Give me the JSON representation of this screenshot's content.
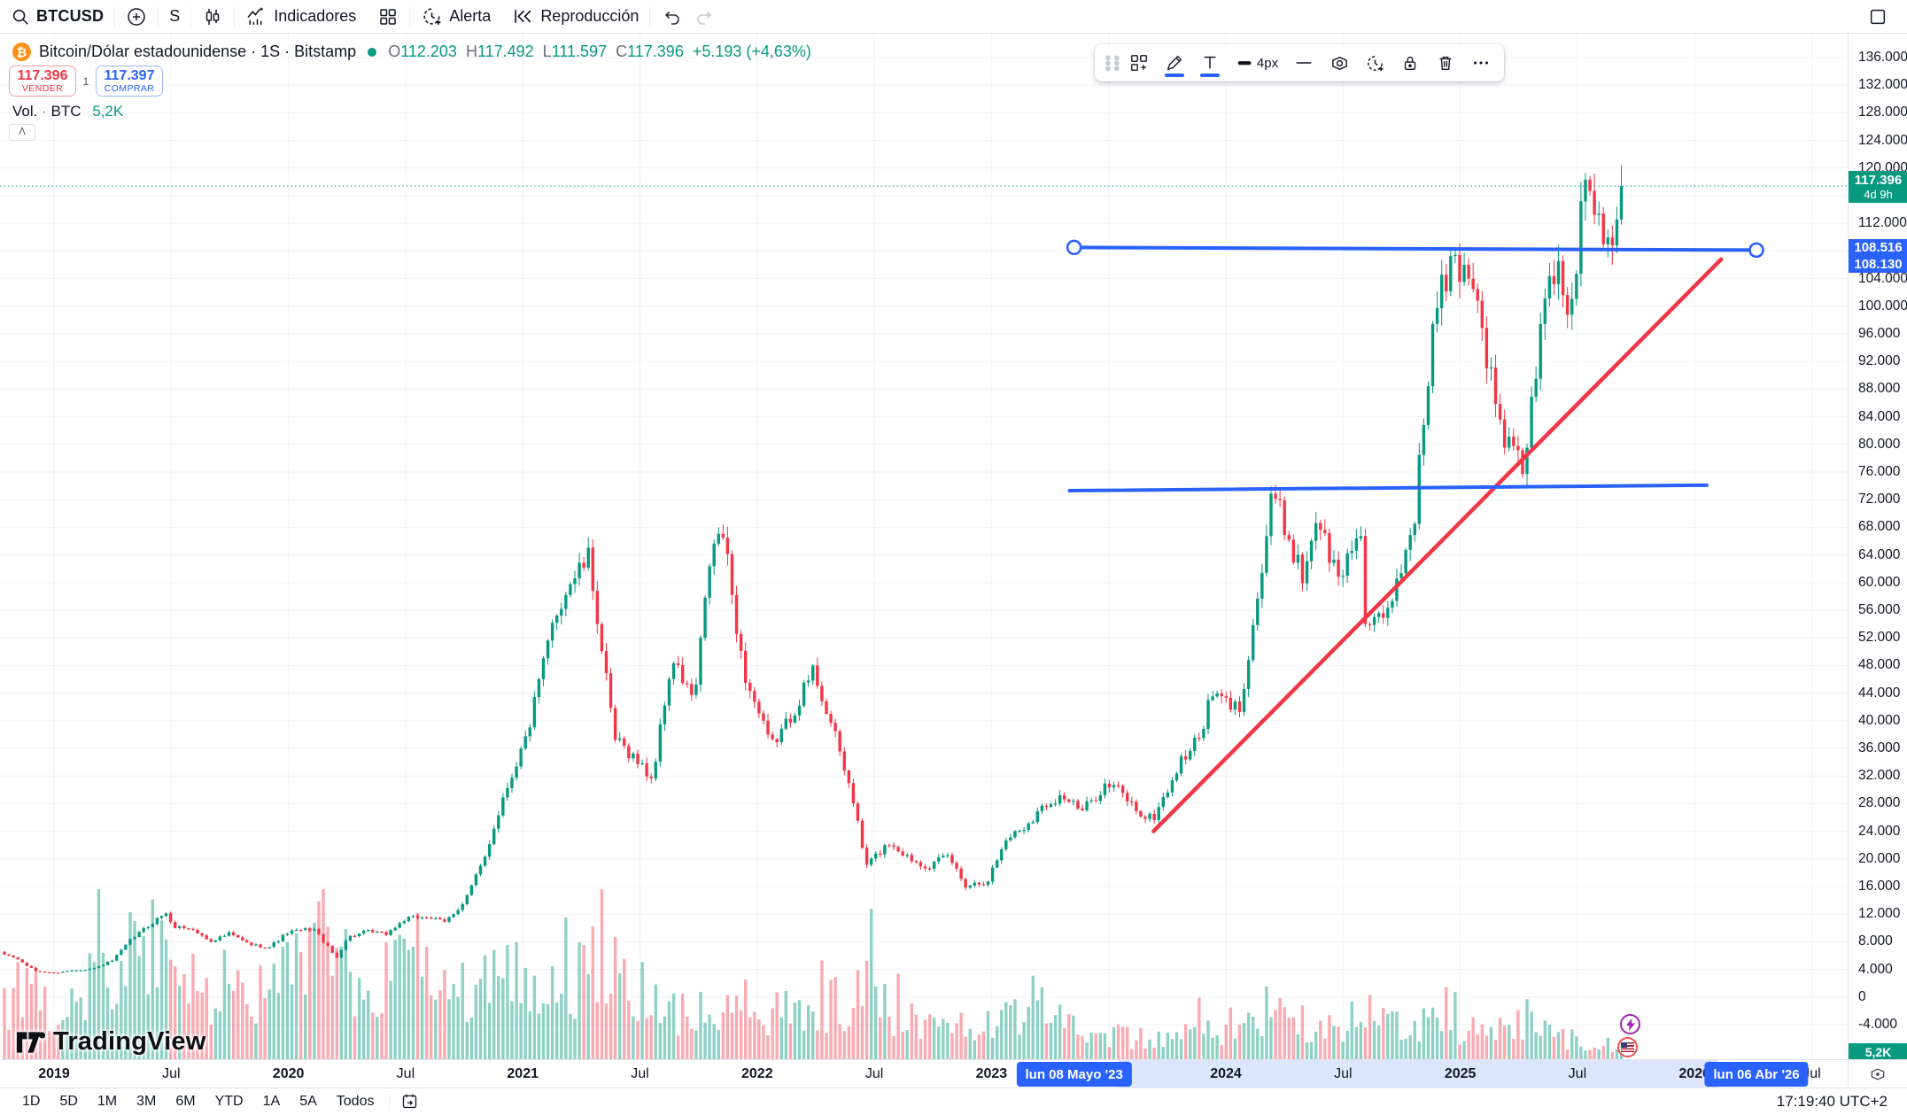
{
  "topbar": {
    "symbol": "BTCUSD",
    "interval": "S",
    "indicators_label": "Indicadores",
    "alert_label": "Alerta",
    "replay_label": "Reproducción"
  },
  "legend": {
    "title": "Bitcoin/Dólar estadounidense · 1S · Bitstamp",
    "o_label": "O",
    "o_value": "112.203",
    "h_label": "H",
    "h_value": "117.492",
    "l_label": "L",
    "l_value": "111.597",
    "c_label": "C",
    "c_value": "117.396",
    "change": "+5.193 (+4,63%)"
  },
  "trade": {
    "sell_price": "117.396",
    "sell_label": "VENDER",
    "spread": "1",
    "buy_price": "117.397",
    "buy_label": "COMPRAR"
  },
  "volume_row": {
    "label": "Vol.",
    "dot": "·",
    "unit": "BTC",
    "value": "5,2K"
  },
  "drawing_toolbar": {
    "width_label": "4px"
  },
  "price_axis_badges": {
    "last_price": "117.396",
    "countdown": "4d 9h",
    "line_start": "108.516",
    "line_end": "108.130",
    "volume": "5,2K"
  },
  "time_axis": {
    "range_start_badge": "lun 08 Mayo '23",
    "range_end_badge": "lun 06 Abr '26"
  },
  "bottom_bar": {
    "ranges": [
      "1D",
      "5D",
      "1M",
      "3M",
      "6M",
      "YTD",
      "1A",
      "5A",
      "Todos"
    ],
    "clock": "17:19:40 UTC+2"
  },
  "watermark": "TradingView",
  "colors": {
    "up": "#089981",
    "down": "#f23645",
    "blue": "#2962ff",
    "up_vol": "rgba(8,153,129,0.45)",
    "down_vol": "rgba(242,54,69,0.42)",
    "grid": "#f1f3f8",
    "axis_border": "#e0e3eb",
    "badge_green": "#089981"
  },
  "chart_data": {
    "type": "candlestick",
    "symbol": "BTCUSD",
    "title": "Bitcoin/Dólar estadounidense",
    "timeframe": "1S",
    "exchange": "Bitstamp",
    "last_price": 117396,
    "last_change": "+5.193 (+4,63%)",
    "countdown": "4d 9h",
    "y_axis": {
      "min": -4000,
      "max": 136000,
      "step": 4000,
      "grid": true
    },
    "x_axis": {
      "start": "2018-10-08",
      "end": "2026-08-01",
      "labels": [
        [
          "2019-01-01",
          "2019",
          "year"
        ],
        [
          "2019-07-01",
          "Jul",
          "month"
        ],
        [
          "2020-01-01",
          "2020",
          "year"
        ],
        [
          "2020-07-01",
          "Jul",
          "month"
        ],
        [
          "2021-01-01",
          "2021",
          "year"
        ],
        [
          "2021-07-01",
          "Jul",
          "month"
        ],
        [
          "2022-01-01",
          "2022",
          "year"
        ],
        [
          "2022-07-01",
          "Jul",
          "month"
        ],
        [
          "2023-01-01",
          "2023",
          "year"
        ],
        [
          "2024-01-01",
          "2024",
          "year"
        ],
        [
          "2024-07-01",
          "Jul",
          "month"
        ],
        [
          "2025-01-01",
          "2025",
          "year"
        ],
        [
          "2025-07-01",
          "Jul",
          "month"
        ],
        [
          "2026-01-01",
          "2026",
          "year"
        ],
        [
          "2026-07-01",
          "Jul",
          "month"
        ]
      ]
    },
    "monthly_closes": [
      [
        "2018-10-08",
        6400
      ],
      [
        "2018-11-01",
        5700
      ],
      [
        "2018-12-01",
        3800
      ],
      [
        "2019-01-01",
        3500
      ],
      [
        "2019-02-01",
        3900
      ],
      [
        "2019-03-01",
        4100
      ],
      [
        "2019-04-01",
        5300
      ],
      [
        "2019-05-01",
        8500
      ],
      [
        "2019-06-25",
        12400
      ],
      [
        "2019-07-01",
        10300
      ],
      [
        "2019-08-01",
        9900
      ],
      [
        "2019-09-01",
        8100
      ],
      [
        "2019-10-01",
        9200
      ],
      [
        "2019-11-01",
        7600
      ],
      [
        "2019-12-01",
        7200
      ],
      [
        "2020-01-01",
        9400
      ],
      [
        "2020-02-10",
        9900
      ],
      [
        "2020-03-15",
        5600
      ],
      [
        "2020-04-01",
        8600
      ],
      [
        "2020-05-01",
        9500
      ],
      [
        "2020-06-01",
        9100
      ],
      [
        "2020-07-01",
        11300
      ],
      [
        "2020-08-01",
        11700
      ],
      [
        "2020-09-01",
        10800
      ],
      [
        "2020-10-01",
        13800
      ],
      [
        "2020-11-01",
        19700
      ],
      [
        "2020-12-01",
        29000
      ],
      [
        "2021-01-08",
        38000
      ],
      [
        "2021-02-20",
        55000
      ],
      [
        "2021-03-13",
        60000
      ],
      [
        "2021-04-13",
        63500
      ],
      [
        "2021-05-22",
        37300
      ],
      [
        "2021-06-20",
        35000
      ],
      [
        "2021-07-20",
        31500
      ],
      [
        "2021-08-20",
        48800
      ],
      [
        "2021-09-25",
        42800
      ],
      [
        "2021-10-20",
        64300
      ],
      [
        "2021-11-08",
        67500
      ],
      [
        "2021-12-10",
        47200
      ],
      [
        "2022-01-22",
        36200
      ],
      [
        "2022-02-20",
        40100
      ],
      [
        "2022-03-28",
        47400
      ],
      [
        "2022-04-28",
        38600
      ],
      [
        "2022-05-28",
        29000
      ],
      [
        "2022-06-18",
        19000
      ],
      [
        "2022-07-25",
        22400
      ],
      [
        "2022-08-25",
        20100
      ],
      [
        "2022-09-25",
        18900
      ],
      [
        "2022-10-25",
        20500
      ],
      [
        "2022-11-21",
        16200
      ],
      [
        "2022-12-25",
        16800
      ],
      [
        "2023-01-25",
        23100
      ],
      [
        "2023-02-20",
        24500
      ],
      [
        "2023-03-25",
        28000
      ],
      [
        "2023-04-20",
        29200
      ],
      [
        "2023-05-20",
        26800
      ],
      [
        "2023-06-25",
        30600
      ],
      [
        "2023-07-15",
        30200
      ],
      [
        "2023-08-25",
        26000
      ],
      [
        "2023-09-10",
        25900
      ],
      [
        "2023-10-25",
        34500
      ],
      [
        "2023-11-20",
        37500
      ],
      [
        "2023-12-10",
        43800
      ],
      [
        "2024-01-22",
        41600
      ],
      [
        "2024-02-28",
        62500
      ],
      [
        "2024-03-13",
        73100
      ],
      [
        "2024-04-30",
        60600
      ],
      [
        "2024-05-20",
        69800
      ],
      [
        "2024-06-24",
        60300
      ],
      [
        "2024-07-29",
        68300
      ],
      [
        "2024-08-05",
        54000
      ],
      [
        "2024-09-06",
        54200
      ],
      [
        "2024-10-20",
        69000
      ],
      [
        "2024-11-22",
        99000
      ],
      [
        "2024-12-17",
        106000
      ],
      [
        "2025-01-20",
        105000
      ],
      [
        "2025-02-28",
        84300
      ],
      [
        "2025-03-10",
        80700
      ],
      [
        "2025-04-08",
        76300
      ],
      [
        "2025-05-20",
        106800
      ],
      [
        "2025-06-22",
        99000
      ],
      [
        "2025-07-14",
        122000
      ],
      [
        "2025-08-01",
        113500
      ],
      [
        "2025-08-25",
        110000
      ],
      [
        "2025-09-12",
        117396
      ]
    ],
    "volume_profile": [
      [
        "2018-10-08",
        0.5
      ],
      [
        "2019-01-01",
        0.45
      ],
      [
        "2019-06-01",
        0.8
      ],
      [
        "2019-08-01",
        0.62
      ],
      [
        "2019-12-01",
        0.45
      ],
      [
        "2020-03-15",
        0.95
      ],
      [
        "2020-05-01",
        0.55
      ],
      [
        "2020-07-20",
        0.72
      ],
      [
        "2020-09-01",
        0.48
      ],
      [
        "2020-12-01",
        0.55
      ],
      [
        "2021-01-15",
        0.62
      ],
      [
        "2021-03-01",
        0.5
      ],
      [
        "2021-05-20",
        0.72
      ],
      [
        "2021-07-20",
        0.4
      ],
      [
        "2021-09-20",
        0.38
      ],
      [
        "2021-12-20",
        0.3
      ],
      [
        "2022-05-10",
        0.44
      ],
      [
        "2022-06-15",
        0.5
      ],
      [
        "2022-08-20",
        0.28
      ],
      [
        "2022-11-10",
        0.34
      ],
      [
        "2023-01-20",
        0.27
      ],
      [
        "2023-03-15",
        0.45
      ],
      [
        "2023-05-20",
        0.2
      ],
      [
        "2023-08-20",
        0.16
      ],
      [
        "2023-10-20",
        0.2
      ],
      [
        "2023-12-20",
        0.22
      ],
      [
        "2024-03-10",
        0.38
      ],
      [
        "2024-05-20",
        0.24
      ],
      [
        "2024-08-06",
        0.32
      ],
      [
        "2024-11-20",
        0.28
      ],
      [
        "2025-01-20",
        0.22
      ],
      [
        "2025-03-10",
        0.22
      ],
      [
        "2025-04-10",
        0.26
      ],
      [
        "2025-06-20",
        0.15
      ],
      [
        "2025-08-01",
        0.12
      ],
      [
        "2025-09-12",
        0.1
      ]
    ],
    "volume_last_label": "5,2K",
    "current_price_line": {
      "price": 117396,
      "style": "dotted",
      "color": "#089981"
    },
    "drawings": [
      {
        "name": "support-trendline",
        "type": "trendline",
        "color": "#f23645",
        "width": 4.5,
        "from": {
          "t": "2023-09-10",
          "price": 24000
        },
        "to": {
          "t": "2026-02-12",
          "price": 106800
        }
      },
      {
        "name": "resistance-line-selected",
        "type": "trendline",
        "color": "#2962ff",
        "width": 4,
        "selected": true,
        "from": {
          "t": "2023-05-08",
          "price": 108516
        },
        "to": {
          "t": "2026-04-06",
          "price": 108130
        }
      },
      {
        "name": "support-horizontal-line",
        "type": "trendline",
        "color": "#2962ff",
        "width": 4,
        "from": {
          "t": "2023-05-01",
          "price": 73300
        },
        "to": {
          "t": "2026-01-20",
          "price": 74100
        }
      }
    ]
  }
}
